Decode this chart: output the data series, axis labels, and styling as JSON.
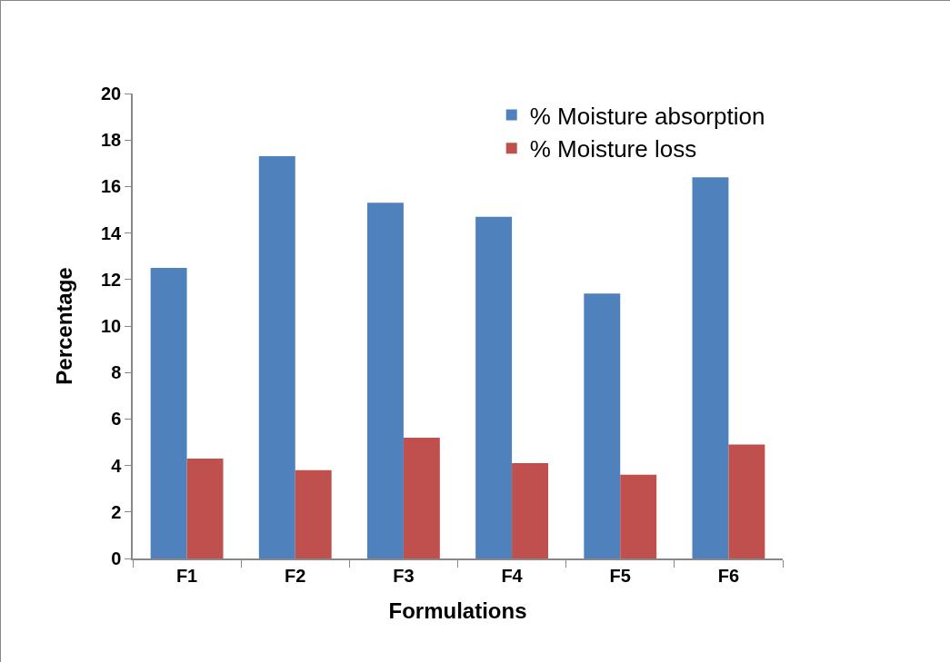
{
  "chart_data": {
    "type": "bar",
    "xlabel": "Formulations",
    "ylabel": "Percentage",
    "categories": [
      "F1",
      "F2",
      "F3",
      "F4",
      "F5",
      "F6"
    ],
    "series": [
      {
        "name": "% Moisture absorption",
        "color": "#4f81bd",
        "values": [
          12.5,
          17.3,
          15.3,
          14.7,
          11.4,
          16.4
        ]
      },
      {
        "name": "% Moisture loss",
        "color": "#c0504d",
        "values": [
          4.3,
          3.8,
          5.2,
          4.1,
          3.6,
          4.9
        ]
      }
    ],
    "ylim": [
      0,
      20
    ],
    "yticks": [
      0,
      2,
      4,
      6,
      8,
      10,
      12,
      14,
      16,
      18,
      20
    ],
    "grid": false,
    "legend": "top right"
  }
}
